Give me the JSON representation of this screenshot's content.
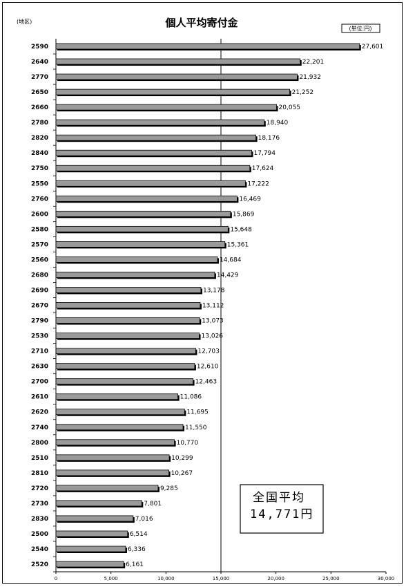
{
  "chart_data": {
    "type": "bar",
    "orientation": "horizontal",
    "title": "個人平均寄付金",
    "region_label": "(地区)",
    "unit_label": "(単位:円)",
    "categories": [
      "2590",
      "2640",
      "2770",
      "2650",
      "2660",
      "2780",
      "2820",
      "2840",
      "2750",
      "2550",
      "2760",
      "2600",
      "2580",
      "2570",
      "2560",
      "2680",
      "2690",
      "2670",
      "2790",
      "2530",
      "2710",
      "2630",
      "2700",
      "2610",
      "2620",
      "2740",
      "2800",
      "2510",
      "2810",
      "2720",
      "2730",
      "2830",
      "2500",
      "2540",
      "2520"
    ],
    "values": [
      27601,
      22201,
      21932,
      21252,
      20055,
      18940,
      18176,
      17794,
      17624,
      17222,
      16469,
      15869,
      15648,
      15361,
      14684,
      14429,
      13178,
      13112,
      13073,
      13026,
      12703,
      12610,
      12463,
      11086,
      11695,
      11550,
      10770,
      10299,
      10267,
      9285,
      7801,
      7016,
      6514,
      6336,
      6161
    ],
    "value_labels": [
      "27,601",
      "22,201",
      "21,932",
      "21,252",
      "20,055",
      "18,940",
      "18,176",
      "17,794",
      "17,624",
      "17,222",
      "16,469",
      "15,869",
      "15,648",
      "15,361",
      "14,684",
      "14,429",
      "13,178",
      "13,112",
      "13,073",
      "13,026",
      "12,703",
      "12,610",
      "12,463",
      "11,086",
      "11,695",
      "11,550",
      "10,770",
      "10,299",
      "10,267",
      "9,285",
      "7,801",
      "7,016",
      "6,514",
      "6,336",
      "6,161"
    ],
    "xlim": [
      0,
      30000
    ],
    "x_ticks": [
      0,
      5000,
      10000,
      15000,
      20000,
      25000,
      30000
    ],
    "x_tick_labels": [
      "0",
      "5,000",
      "10,000",
      "15,000",
      "20,000",
      "25,000",
      "30,000"
    ],
    "reference_line": 15000,
    "bar_color": "#9a9a9a",
    "bar_shadow_color": "#000000",
    "grid": false,
    "annotation": {
      "line1": "全国平均",
      "line2": "14,771円"
    }
  }
}
